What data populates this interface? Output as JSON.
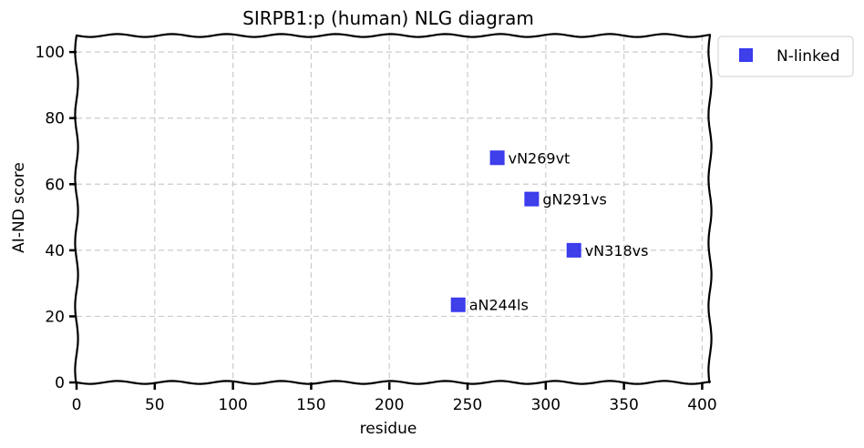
{
  "chart_data": {
    "type": "scatter",
    "title": "SIRPB1:p (human) NLG diagram",
    "xlabel": "residue",
    "ylabel": "AI-ND score",
    "xlim": [
      0,
      405
    ],
    "ylim": [
      0,
      105
    ],
    "xticks": [
      0,
      50,
      100,
      150,
      200,
      250,
      300,
      350,
      400
    ],
    "yticks": [
      0,
      20,
      40,
      60,
      80,
      100
    ],
    "grid": true,
    "legend_position": "outside-top-right",
    "series": [
      {
        "name": "N-linked",
        "color": "#1f1fe6",
        "marker": "square",
        "points": [
          {
            "x": 244,
            "y": 23.5,
            "label": "aN244ls"
          },
          {
            "x": 269,
            "y": 68,
            "label": "vN269vt"
          },
          {
            "x": 291,
            "y": 55.5,
            "label": "gN291vs"
          },
          {
            "x": 318,
            "y": 40,
            "label": "vN318vs"
          }
        ]
      }
    ]
  }
}
